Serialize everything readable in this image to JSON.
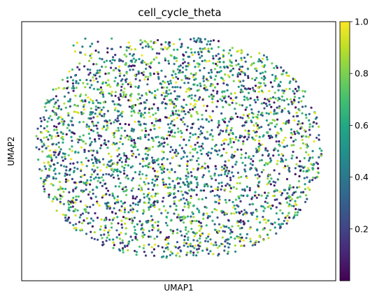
{
  "chart_data": {
    "type": "scatter",
    "title": "cell_cycle_theta",
    "xlabel": "UMAP1",
    "ylabel": "UMAP2",
    "x_ticks": [],
    "y_ticks": [],
    "grid": false,
    "legend": "none",
    "colorbar": {
      "cmap": "viridis",
      "vmin": 0.0,
      "vmax": 1.0,
      "placement": "right",
      "ticks": [
        0.2,
        0.4,
        0.6,
        0.8,
        1.0
      ],
      "tick_labels": [
        "0.2",
        "0.4",
        "0.6",
        "0.8",
        "1.0"
      ]
    },
    "point_color_by": "cell_cycle_theta",
    "point_count_estimate": 3000,
    "cloud": {
      "shape": "roughly circular blob with a small bump at upper left",
      "value_distribution": "mixed across the full 0–1 range throughout, no clear spatial gradient"
    }
  }
}
